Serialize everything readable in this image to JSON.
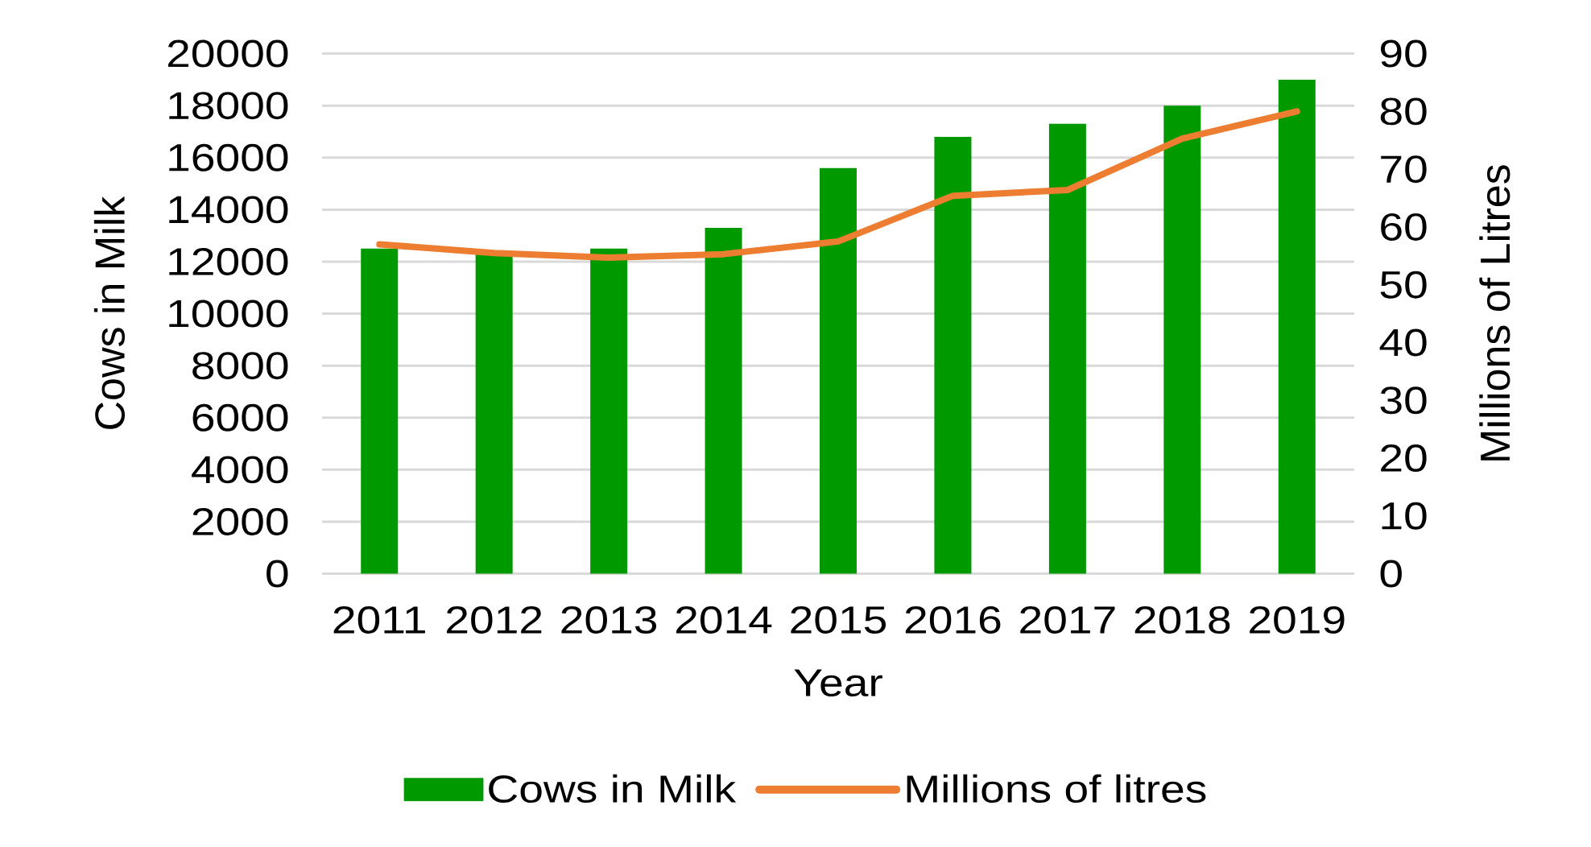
{
  "chart_data": {
    "type": "bar",
    "xlabel": "Year",
    "ylabel": "Cows in Milk",
    "y2label": "Millions of Litres",
    "categories": [
      "2011",
      "2012",
      "2013",
      "2014",
      "2015",
      "2016",
      "2017",
      "2018",
      "2019"
    ],
    "series": [
      {
        "name": "Cows in Milk",
        "color": "#009900",
        "values": [
          12500,
          12400,
          12500,
          13300,
          15600,
          16800,
          17300,
          18000,
          19000
        ]
      },
      {
        "name": "Millions of litres",
        "type": "line",
        "axis": "y2",
        "color": "#ed7d31",
        "values": [
          57,
          55.5,
          54.7,
          55.3,
          57.5,
          65.4,
          66.4,
          75.3,
          80
        ]
      }
    ],
    "ylim": [
      0,
      20000
    ],
    "yticks": [
      0,
      2000,
      4000,
      6000,
      8000,
      10000,
      12000,
      14000,
      16000,
      18000,
      20000
    ],
    "y2lim": [
      0,
      90
    ],
    "y2ticks": [
      0,
      10,
      20,
      30,
      40,
      50,
      60,
      70,
      80,
      90
    ],
    "grid": "y",
    "legend": "bottom"
  }
}
